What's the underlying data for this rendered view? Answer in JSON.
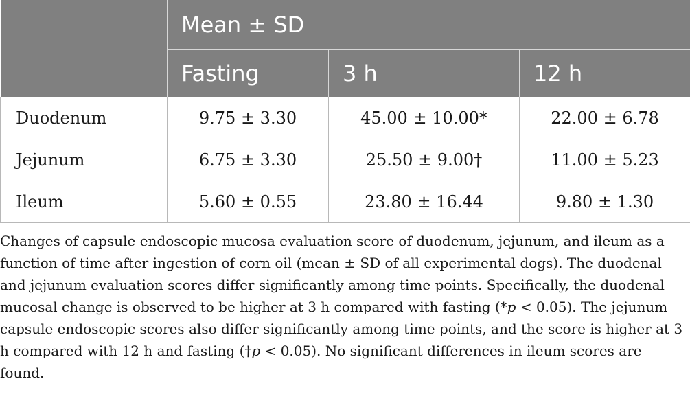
{
  "table": {
    "header_group": "Mean ± SD",
    "columns": [
      "Fasting",
      "3 h",
      "12 h"
    ],
    "rows": [
      {
        "label": "Duodenum",
        "values": [
          "9.75 ± 3.30",
          "45.00 ± 10.00*",
          "22.00 ± 6.78"
        ]
      },
      {
        "label": "Jejunum",
        "values": [
          "6.75 ± 3.30",
          "25.50 ± 9.00†",
          "11.00 ± 5.23"
        ]
      },
      {
        "label": "Ileum",
        "values": [
          "5.60 ± 0.55",
          "23.80 ± 16.44",
          "9.80 ± 1.30"
        ]
      }
    ]
  },
  "caption": {
    "p1": "Changes of capsule endoscopic mucosa evaluation score of duodenum, jejunum, and ileum as a function of time after ingestion of corn oil (mean ± SD of all experimental dogs). The duodenal and jejunum evaluation scores differ significantly among time points. Specifically, the duodenal mucosal change is observed to be higher at 3 h compared with fasting (*",
    "p_symbol_1": "p",
    "p2": " < 0.05). The jejunum capsule endoscopic scores also differ significantly among time points, and the score is higher at 3 h compared with 12 h and fasting (†",
    "p_symbol_2": "p",
    "p3": " < 0.05). No significant differences in ileum scores are found."
  }
}
